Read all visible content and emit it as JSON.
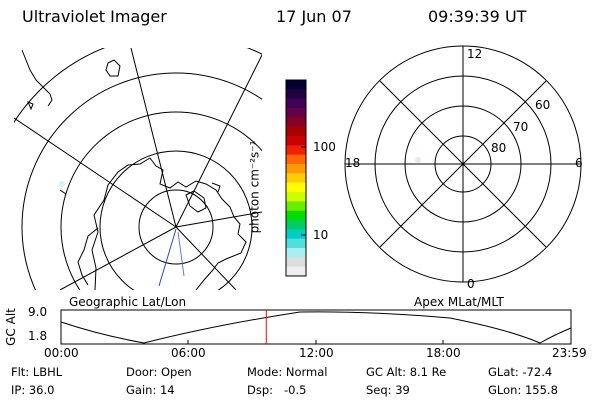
{
  "header": {
    "instrument": "Ultraviolet Imager",
    "date": "17 Jun 07",
    "time": "09:39:39 UT"
  },
  "left_panel": {
    "label": "Geographic Lat/Lon"
  },
  "right_panel": {
    "label": "Apex MLat/MLT",
    "mlt_labels": [
      "12",
      "18",
      "6",
      "0"
    ],
    "mlat_labels": [
      "60",
      "70",
      "80"
    ]
  },
  "colorbar": {
    "unit_label": "photon cm⁻²s⁻¹",
    "ticks": [
      "100",
      "10"
    ],
    "colors": [
      "#000033",
      "#220044",
      "#440055",
      "#660044",
      "#880022",
      "#aa0000",
      "#cc0000",
      "#ee2200",
      "#ff6600",
      "#ff9900",
      "#ffcc00",
      "#ffff00",
      "#ccff00",
      "#66ee00",
      "#00dd00",
      "#00cc66",
      "#00cccc",
      "#55dddd",
      "#aaeeee",
      "#dddddd",
      "#eeeeee"
    ]
  },
  "altitude_plot": {
    "ylabel": "GC Alt",
    "yticks": [
      "9.0",
      "1.8"
    ],
    "xticks": [
      "00:00",
      "06:00",
      "12:00",
      "18:00",
      "23:59"
    ],
    "current_time_fraction": 0.4025
  },
  "info": {
    "filter": "Flt: LBHL",
    "ip": "IP: 36.0",
    "door": "Door: Open",
    "gain": "Gain: 14",
    "mode": "Mode: Normal",
    "dsp": "Dsp:   -0.5",
    "gc_alt": "GC Alt: 8.1 Re",
    "seq": "Seq: 39",
    "glat": "GLat: -72.4",
    "glon": "GLon: 155.8"
  }
}
